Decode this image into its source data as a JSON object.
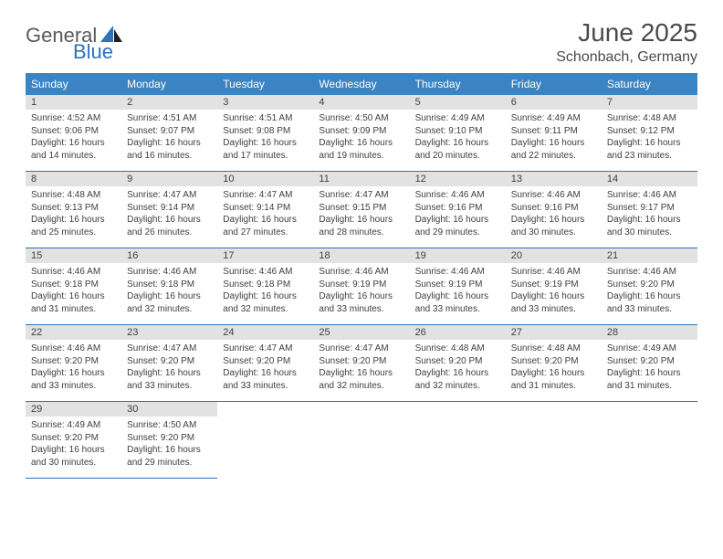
{
  "logo": {
    "general": "General",
    "blue": "Blue"
  },
  "title": {
    "month": "June 2025",
    "location": "Schonbach, Germany"
  },
  "colors": {
    "header_bg": "#3b84c4",
    "daynum_bg": "#e2e2e2",
    "row_border": "#2f72b8",
    "text": "#404040",
    "logo_gray": "#5a5a5a",
    "logo_blue": "#2f72b8"
  },
  "fonts": {
    "title_size": 28,
    "location_size": 16,
    "head_size": 12,
    "daynum_size": 11,
    "body_size": 10
  },
  "headers": [
    "Sunday",
    "Monday",
    "Tuesday",
    "Wednesday",
    "Thursday",
    "Friday",
    "Saturday"
  ],
  "weeks": [
    [
      {
        "n": "1",
        "sr": "Sunrise: 4:52 AM",
        "ss": "Sunset: 9:06 PM",
        "dl1": "Daylight: 16 hours",
        "dl2": "and 14 minutes."
      },
      {
        "n": "2",
        "sr": "Sunrise: 4:51 AM",
        "ss": "Sunset: 9:07 PM",
        "dl1": "Daylight: 16 hours",
        "dl2": "and 16 minutes."
      },
      {
        "n": "3",
        "sr": "Sunrise: 4:51 AM",
        "ss": "Sunset: 9:08 PM",
        "dl1": "Daylight: 16 hours",
        "dl2": "and 17 minutes."
      },
      {
        "n": "4",
        "sr": "Sunrise: 4:50 AM",
        "ss": "Sunset: 9:09 PM",
        "dl1": "Daylight: 16 hours",
        "dl2": "and 19 minutes."
      },
      {
        "n": "5",
        "sr": "Sunrise: 4:49 AM",
        "ss": "Sunset: 9:10 PM",
        "dl1": "Daylight: 16 hours",
        "dl2": "and 20 minutes."
      },
      {
        "n": "6",
        "sr": "Sunrise: 4:49 AM",
        "ss": "Sunset: 9:11 PM",
        "dl1": "Daylight: 16 hours",
        "dl2": "and 22 minutes."
      },
      {
        "n": "7",
        "sr": "Sunrise: 4:48 AM",
        "ss": "Sunset: 9:12 PM",
        "dl1": "Daylight: 16 hours",
        "dl2": "and 23 minutes."
      }
    ],
    [
      {
        "n": "8",
        "sr": "Sunrise: 4:48 AM",
        "ss": "Sunset: 9:13 PM",
        "dl1": "Daylight: 16 hours",
        "dl2": "and 25 minutes."
      },
      {
        "n": "9",
        "sr": "Sunrise: 4:47 AM",
        "ss": "Sunset: 9:14 PM",
        "dl1": "Daylight: 16 hours",
        "dl2": "and 26 minutes."
      },
      {
        "n": "10",
        "sr": "Sunrise: 4:47 AM",
        "ss": "Sunset: 9:14 PM",
        "dl1": "Daylight: 16 hours",
        "dl2": "and 27 minutes."
      },
      {
        "n": "11",
        "sr": "Sunrise: 4:47 AM",
        "ss": "Sunset: 9:15 PM",
        "dl1": "Daylight: 16 hours",
        "dl2": "and 28 minutes."
      },
      {
        "n": "12",
        "sr": "Sunrise: 4:46 AM",
        "ss": "Sunset: 9:16 PM",
        "dl1": "Daylight: 16 hours",
        "dl2": "and 29 minutes."
      },
      {
        "n": "13",
        "sr": "Sunrise: 4:46 AM",
        "ss": "Sunset: 9:16 PM",
        "dl1": "Daylight: 16 hours",
        "dl2": "and 30 minutes."
      },
      {
        "n": "14",
        "sr": "Sunrise: 4:46 AM",
        "ss": "Sunset: 9:17 PM",
        "dl1": "Daylight: 16 hours",
        "dl2": "and 30 minutes."
      }
    ],
    [
      {
        "n": "15",
        "sr": "Sunrise: 4:46 AM",
        "ss": "Sunset: 9:18 PM",
        "dl1": "Daylight: 16 hours",
        "dl2": "and 31 minutes."
      },
      {
        "n": "16",
        "sr": "Sunrise: 4:46 AM",
        "ss": "Sunset: 9:18 PM",
        "dl1": "Daylight: 16 hours",
        "dl2": "and 32 minutes."
      },
      {
        "n": "17",
        "sr": "Sunrise: 4:46 AM",
        "ss": "Sunset: 9:18 PM",
        "dl1": "Daylight: 16 hours",
        "dl2": "and 32 minutes."
      },
      {
        "n": "18",
        "sr": "Sunrise: 4:46 AM",
        "ss": "Sunset: 9:19 PM",
        "dl1": "Daylight: 16 hours",
        "dl2": "and 33 minutes."
      },
      {
        "n": "19",
        "sr": "Sunrise: 4:46 AM",
        "ss": "Sunset: 9:19 PM",
        "dl1": "Daylight: 16 hours",
        "dl2": "and 33 minutes."
      },
      {
        "n": "20",
        "sr": "Sunrise: 4:46 AM",
        "ss": "Sunset: 9:19 PM",
        "dl1": "Daylight: 16 hours",
        "dl2": "and 33 minutes."
      },
      {
        "n": "21",
        "sr": "Sunrise: 4:46 AM",
        "ss": "Sunset: 9:20 PM",
        "dl1": "Daylight: 16 hours",
        "dl2": "and 33 minutes."
      }
    ],
    [
      {
        "n": "22",
        "sr": "Sunrise: 4:46 AM",
        "ss": "Sunset: 9:20 PM",
        "dl1": "Daylight: 16 hours",
        "dl2": "and 33 minutes."
      },
      {
        "n": "23",
        "sr": "Sunrise: 4:47 AM",
        "ss": "Sunset: 9:20 PM",
        "dl1": "Daylight: 16 hours",
        "dl2": "and 33 minutes."
      },
      {
        "n": "24",
        "sr": "Sunrise: 4:47 AM",
        "ss": "Sunset: 9:20 PM",
        "dl1": "Daylight: 16 hours",
        "dl2": "and 33 minutes."
      },
      {
        "n": "25",
        "sr": "Sunrise: 4:47 AM",
        "ss": "Sunset: 9:20 PM",
        "dl1": "Daylight: 16 hours",
        "dl2": "and 32 minutes."
      },
      {
        "n": "26",
        "sr": "Sunrise: 4:48 AM",
        "ss": "Sunset: 9:20 PM",
        "dl1": "Daylight: 16 hours",
        "dl2": "and 32 minutes."
      },
      {
        "n": "27",
        "sr": "Sunrise: 4:48 AM",
        "ss": "Sunset: 9:20 PM",
        "dl1": "Daylight: 16 hours",
        "dl2": "and 31 minutes."
      },
      {
        "n": "28",
        "sr": "Sunrise: 4:49 AM",
        "ss": "Sunset: 9:20 PM",
        "dl1": "Daylight: 16 hours",
        "dl2": "and 31 minutes."
      }
    ],
    [
      {
        "n": "29",
        "sr": "Sunrise: 4:49 AM",
        "ss": "Sunset: 9:20 PM",
        "dl1": "Daylight: 16 hours",
        "dl2": "and 30 minutes."
      },
      {
        "n": "30",
        "sr": "Sunrise: 4:50 AM",
        "ss": "Sunset: 9:20 PM",
        "dl1": "Daylight: 16 hours",
        "dl2": "and 29 minutes."
      },
      {
        "empty": true
      },
      {
        "empty": true
      },
      {
        "empty": true
      },
      {
        "empty": true
      },
      {
        "empty": true
      }
    ]
  ]
}
